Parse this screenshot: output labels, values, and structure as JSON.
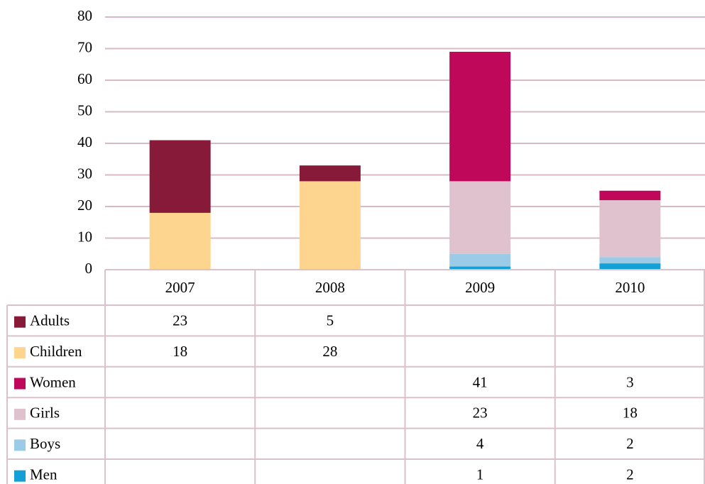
{
  "chart_data": {
    "type": "bar",
    "stacked": true,
    "categories": [
      "2007",
      "2008",
      "2009",
      "2010"
    ],
    "series": [
      {
        "name": "Adults",
        "color": "#861a38",
        "values": [
          23,
          5,
          null,
          null
        ]
      },
      {
        "name": "Children",
        "color": "#fdd58f",
        "values": [
          18,
          28,
          null,
          null
        ]
      },
      {
        "name": "Women",
        "color": "#c0085a",
        "values": [
          null,
          null,
          41,
          3
        ]
      },
      {
        "name": "Girls",
        "color": "#dfc2cd",
        "values": [
          null,
          null,
          23,
          18
        ]
      },
      {
        "name": "Boys",
        "color": "#9ccbe8",
        "values": [
          null,
          null,
          4,
          2
        ]
      },
      {
        "name": "Men",
        "color": "#12a0d6",
        "values": [
          null,
          null,
          1,
          2
        ]
      }
    ],
    "ylim": [
      0,
      80
    ],
    "yticks": [
      0,
      10,
      20,
      30,
      40,
      50,
      60,
      70,
      80
    ],
    "grid": true,
    "data_table": true
  }
}
